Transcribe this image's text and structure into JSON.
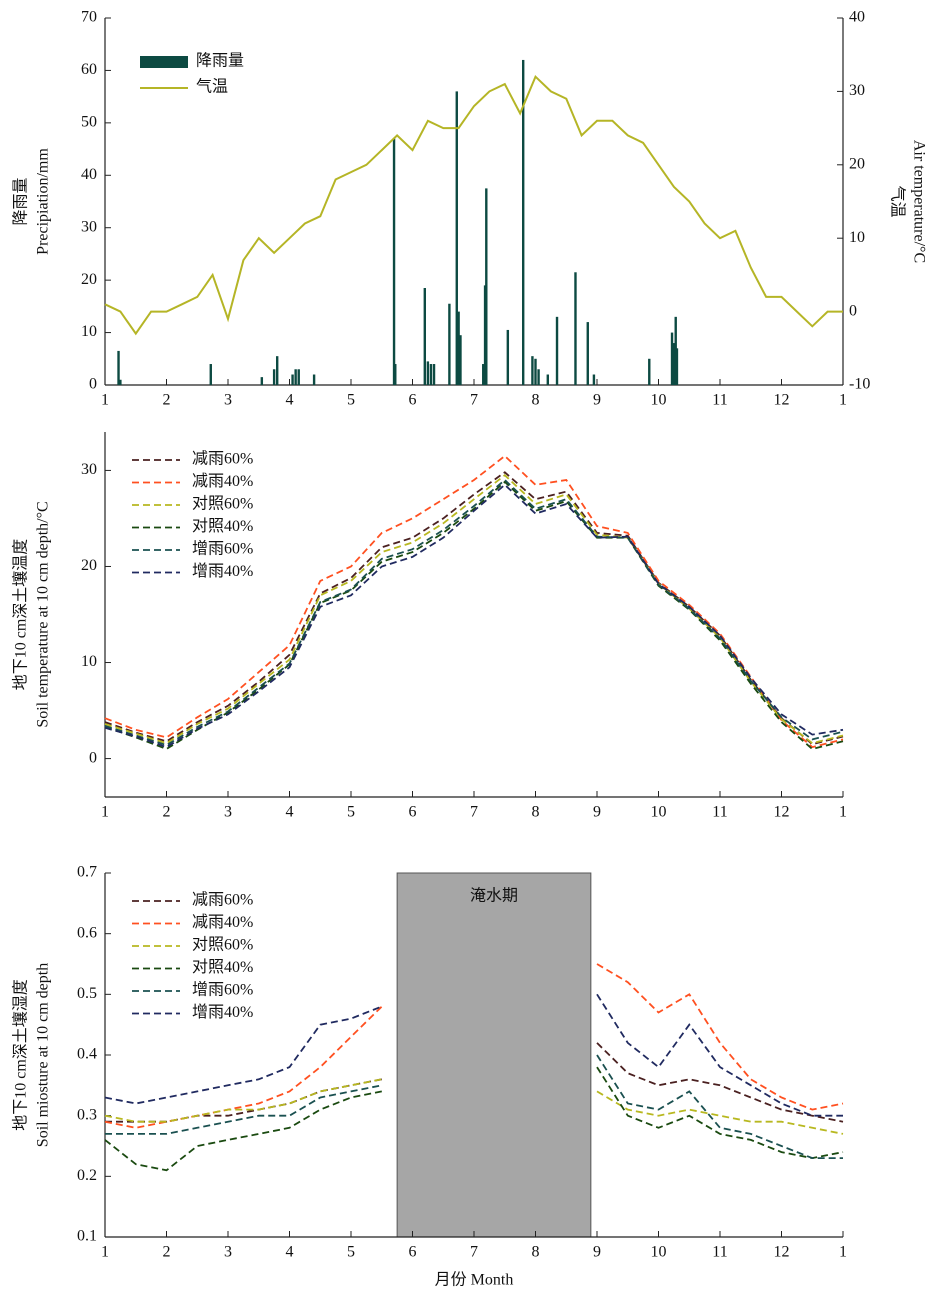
{
  "chart_data": [
    {
      "type": "bar_line",
      "xlim": [
        1,
        13
      ],
      "xticks": [
        1,
        2,
        3,
        4,
        5,
        6,
        7,
        8,
        9,
        10,
        11,
        12,
        {
          "value": 13,
          "label": "1"
        }
      ],
      "ylim": [
        0,
        70
      ],
      "yticks": [
        0,
        10,
        20,
        30,
        40,
        50,
        60,
        70
      ],
      "y2lim": [
        -10,
        40
      ],
      "y2ticks": [
        -10,
        0,
        10,
        20,
        30,
        40
      ],
      "ylabel": [
        "降雨量",
        "Precipiation/mm"
      ],
      "y2label": [
        "气温",
        "Air temperature/°C"
      ],
      "x": [
        1,
        1.25,
        1.5,
        1.75,
        2,
        2.25,
        2.5,
        2.75,
        3,
        3.25,
        3.5,
        3.75,
        4,
        4.25,
        4.5,
        4.75,
        5,
        5.25,
        5.5,
        5.75,
        6,
        6.25,
        6.5,
        6.75,
        7,
        7.25,
        7.5,
        7.75,
        8,
        8.25,
        8.5,
        8.75,
        9,
        9.25,
        9.5,
        9.75,
        10,
        10.25,
        10.5,
        10.75,
        11,
        11.25,
        11.5,
        11.75,
        12,
        12.25,
        12.5,
        12.75,
        13
      ],
      "series": [
        {
          "name": "降雨量",
          "type": "bar",
          "color": "#0d4a42",
          "x": [
            1.22,
            1.25,
            2.72,
            3.55,
            3.75,
            3.8,
            4.05,
            4.1,
            4.15,
            4.4,
            5.7,
            5.72,
            6.2,
            6.25,
            6.3,
            6.35,
            6.6,
            6.72,
            6.75,
            6.78,
            7.15,
            7.18,
            7.2,
            7.55,
            7.8,
            7.95,
            8.0,
            8.05,
            8.2,
            8.35,
            8.65,
            8.85,
            8.95,
            9.85,
            10.22,
            10.25,
            10.28,
            10.3
          ],
          "values": [
            6.5,
            1,
            4,
            1.5,
            3,
            5.5,
            2,
            3,
            3,
            2,
            47,
            4,
            18.5,
            4.5,
            4,
            4,
            15.5,
            56,
            14,
            9.5,
            4,
            19,
            37.5,
            10.5,
            62,
            5.5,
            5,
            3,
            2,
            13,
            21.5,
            12,
            2,
            5,
            10,
            8,
            13,
            7
          ]
        },
        {
          "name": "气温",
          "type": "line",
          "axis": "y2",
          "color": "#b5b526",
          "values": [
            1,
            0,
            -3,
            0,
            0,
            1,
            2,
            5,
            -1,
            7,
            10,
            8,
            10,
            12,
            13,
            18,
            19,
            20,
            22,
            24,
            22,
            26,
            25,
            25,
            28,
            30,
            31,
            27,
            32,
            30,
            29,
            24,
            26,
            26,
            24,
            23,
            20,
            17,
            15,
            12,
            10,
            11,
            6,
            2,
            2,
            0,
            -2,
            0,
            0
          ]
        }
      ]
    },
    {
      "type": "line",
      "line_style": "dashed",
      "xlim": [
        1,
        13
      ],
      "xticks": [
        1,
        2,
        3,
        4,
        5,
        6,
        7,
        8,
        9,
        10,
        11,
        12,
        {
          "value": 13,
          "label": "1"
        }
      ],
      "ylim": [
        -4,
        34
      ],
      "yticks": [
        0,
        10,
        20,
        30
      ],
      "ylabel": [
        "地下10 cm深土壤温度",
        "Soil temperature at 10 cm depth/°C"
      ],
      "x": [
        1,
        1.5,
        2,
        2.5,
        3,
        3.5,
        4,
        4.5,
        5,
        5.5,
        6,
        6.5,
        7,
        7.5,
        8,
        8.5,
        9,
        9.5,
        10,
        10.5,
        11,
        11.5,
        12,
        12.5,
        13
      ],
      "series": [
        {
          "name": "减雨60%",
          "color": "#4a2020",
          "values": [
            3.8,
            2.7,
            1.8,
            3.8,
            5.5,
            8,
            10.8,
            17.2,
            18.8,
            22,
            23,
            25,
            27.5,
            29.8,
            27,
            27.8,
            23.5,
            23.2,
            18.3,
            15.8,
            12.8,
            8.2,
            4.2,
            1.5,
            2.3
          ]
        },
        {
          "name": "减雨40%",
          "color": "#ff5020",
          "values": [
            4.2,
            3,
            2.2,
            4.3,
            6.2,
            9,
            11.8,
            18.5,
            20,
            23.5,
            25,
            27,
            29,
            31.5,
            28.5,
            29,
            24.2,
            23.5,
            18.5,
            16,
            13,
            8.5,
            4,
            1.2,
            2
          ]
        },
        {
          "name": "对照60%",
          "color": "#b8b820",
          "values": [
            3.6,
            2.6,
            1.6,
            3.6,
            5.2,
            7.8,
            10.3,
            17,
            18.5,
            21.5,
            22.5,
            24.5,
            27,
            29.5,
            26.5,
            27.5,
            23.3,
            23,
            18.2,
            15.6,
            12.6,
            8,
            4.1,
            1.6,
            2.4
          ]
        },
        {
          "name": "对照40%",
          "color": "#1a4a10",
          "values": [
            3.3,
            2.2,
            1,
            3,
            4.8,
            7.2,
            9.8,
            16.2,
            17.5,
            20.5,
            21.5,
            23.5,
            26,
            28.8,
            25.8,
            26.8,
            23,
            23,
            18,
            15.5,
            12.3,
            7.8,
            3.8,
            1,
            1.8
          ]
        },
        {
          "name": "增雨60%",
          "color": "#1a5050",
          "values": [
            3.4,
            2.4,
            1.4,
            3.3,
            4.9,
            7.4,
            9.9,
            16.3,
            17.6,
            20.8,
            21.8,
            23.8,
            26.3,
            29,
            26,
            27,
            23.1,
            23,
            18.1,
            15.6,
            12.5,
            8.1,
            4.3,
            2,
            2.8
          ]
        },
        {
          "name": "增雨40%",
          "color": "#202a60",
          "values": [
            3.2,
            2.3,
            1.2,
            3.1,
            4.6,
            7,
            9.5,
            15.8,
            17,
            20,
            21,
            23,
            25.8,
            28.5,
            25.5,
            26.5,
            23,
            23.1,
            18.2,
            15.8,
            12.8,
            8.4,
            4.6,
            2.5,
            3
          ]
        }
      ]
    },
    {
      "type": "line",
      "line_style": "dashed",
      "xlim": [
        1,
        13
      ],
      "xticks": [
        1,
        2,
        3,
        4,
        5,
        6,
        7,
        8,
        9,
        10,
        11,
        12,
        {
          "value": 13,
          "label": "1"
        }
      ],
      "ylim": [
        0.1,
        0.7
      ],
      "yticks": [
        0.1,
        0.2,
        0.3,
        0.4,
        0.5,
        0.6,
        0.7
      ],
      "ylabel": [
        "地下10 cm深土壤湿度",
        "Soil miosture at 10 cm depth"
      ],
      "xlabel": "月份 Month",
      "shaded": {
        "x": [
          5.75,
          8.9
        ],
        "label": "淹水期",
        "color": "#a6a6a6"
      },
      "x": [
        1,
        1.5,
        2,
        2.5,
        3,
        3.5,
        4,
        4.5,
        5,
        5.5,
        6,
        6.5,
        7,
        7.5,
        8,
        8.5,
        9,
        9.5,
        10,
        10.5,
        11,
        11.5,
        12,
        12.5,
        13
      ],
      "series": [
        {
          "name": "减雨60%",
          "color": "#4a2020",
          "values": [
            0.29,
            0.29,
            0.29,
            0.3,
            0.3,
            0.31,
            0.32,
            0.34,
            0.35,
            0.36,
            null,
            null,
            null,
            null,
            null,
            null,
            0.42,
            0.37,
            0.35,
            0.36,
            0.35,
            0.33,
            0.31,
            0.3,
            0.29
          ]
        },
        {
          "name": "减雨40%",
          "color": "#ff5020",
          "values": [
            0.29,
            0.28,
            0.29,
            0.3,
            0.31,
            0.32,
            0.34,
            0.38,
            0.43,
            0.48,
            null,
            null,
            null,
            null,
            null,
            null,
            0.55,
            0.52,
            0.47,
            0.5,
            0.42,
            0.36,
            0.33,
            0.31,
            0.32
          ]
        },
        {
          "name": "对照60%",
          "color": "#b8b820",
          "values": [
            0.3,
            0.29,
            0.29,
            0.3,
            0.31,
            0.31,
            0.32,
            0.34,
            0.35,
            0.36,
            null,
            null,
            null,
            null,
            null,
            null,
            0.34,
            0.31,
            0.3,
            0.31,
            0.3,
            0.29,
            0.29,
            0.28,
            0.27
          ]
        },
        {
          "name": "对照40%",
          "color": "#1a4a10",
          "values": [
            0.26,
            0.22,
            0.21,
            0.25,
            0.26,
            0.27,
            0.28,
            0.31,
            0.33,
            0.34,
            null,
            null,
            null,
            null,
            null,
            null,
            0.38,
            0.3,
            0.28,
            0.3,
            0.27,
            0.26,
            0.24,
            0.23,
            0.24
          ]
        },
        {
          "name": "增雨60%",
          "color": "#1a5050",
          "values": [
            0.27,
            0.27,
            0.27,
            0.28,
            0.29,
            0.3,
            0.3,
            0.33,
            0.34,
            0.35,
            null,
            null,
            null,
            null,
            null,
            null,
            0.4,
            0.32,
            0.31,
            0.34,
            0.28,
            0.27,
            0.25,
            0.23,
            0.23
          ]
        },
        {
          "name": "增雨40%",
          "color": "#202a60",
          "values": [
            0.33,
            0.32,
            0.33,
            0.34,
            0.35,
            0.36,
            0.38,
            0.45,
            0.46,
            0.48,
            null,
            null,
            null,
            null,
            null,
            null,
            0.5,
            0.42,
            0.38,
            0.45,
            0.38,
            0.35,
            0.32,
            0.3,
            0.3
          ]
        }
      ]
    }
  ]
}
